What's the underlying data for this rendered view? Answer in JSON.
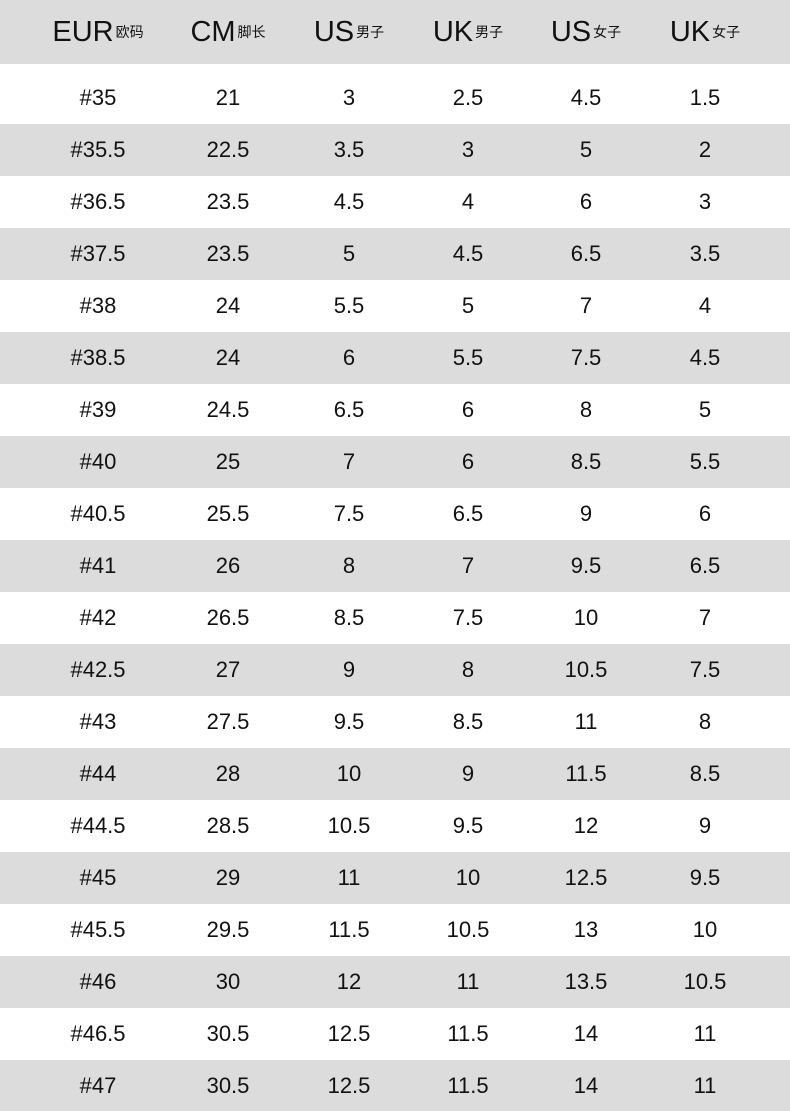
{
  "table": {
    "header": [
      {
        "main": "EUR",
        "sub": "欧码"
      },
      {
        "main": "CM",
        "sub": "脚长"
      },
      {
        "main": "US",
        "sub": "男子"
      },
      {
        "main": "UK",
        "sub": "男子"
      },
      {
        "main": "US",
        "sub": "女子"
      },
      {
        "main": "UK",
        "sub": "女子"
      }
    ],
    "rows": [
      [
        "#35",
        "21",
        "3",
        "2.5",
        "4.5",
        "1.5"
      ],
      [
        "#35.5",
        "22.5",
        "3.5",
        "3",
        "5",
        "2"
      ],
      [
        "#36.5",
        "23.5",
        "4.5",
        "4",
        "6",
        "3"
      ],
      [
        "#37.5",
        "23.5",
        "5",
        "4.5",
        "6.5",
        "3.5"
      ],
      [
        "#38",
        "24",
        "5.5",
        "5",
        "7",
        "4"
      ],
      [
        "#38.5",
        "24",
        "6",
        "5.5",
        "7.5",
        "4.5"
      ],
      [
        "#39",
        "24.5",
        "6.5",
        "6",
        "8",
        "5"
      ],
      [
        "#40",
        "25",
        "7",
        "6",
        "8.5",
        "5.5"
      ],
      [
        "#40.5",
        "25.5",
        "7.5",
        "6.5",
        "9",
        "6"
      ],
      [
        "#41",
        "26",
        "8",
        "7",
        "9.5",
        "6.5"
      ],
      [
        "#42",
        "26.5",
        "8.5",
        "7.5",
        "10",
        "7"
      ],
      [
        "#42.5",
        "27",
        "9",
        "8",
        "10.5",
        "7.5"
      ],
      [
        "#43",
        "27.5",
        "9.5",
        "8.5",
        "11",
        "8"
      ],
      [
        "#44",
        "28",
        "10",
        "9",
        "11.5",
        "8.5"
      ],
      [
        "#44.5",
        "28.5",
        "10.5",
        "9.5",
        "12",
        "9"
      ],
      [
        "#45",
        "29",
        "11",
        "10",
        "12.5",
        "9.5"
      ],
      [
        "#45.5",
        "29.5",
        "11.5",
        "10.5",
        "13",
        "10"
      ],
      [
        "#46",
        "30",
        "12",
        "11",
        "13.5",
        "10.5"
      ],
      [
        "#46.5",
        "30.5",
        "12.5",
        "11.5",
        "14",
        "11"
      ],
      [
        "#47",
        "30.5",
        "12.5",
        "11.5",
        "14",
        "11"
      ]
    ]
  }
}
